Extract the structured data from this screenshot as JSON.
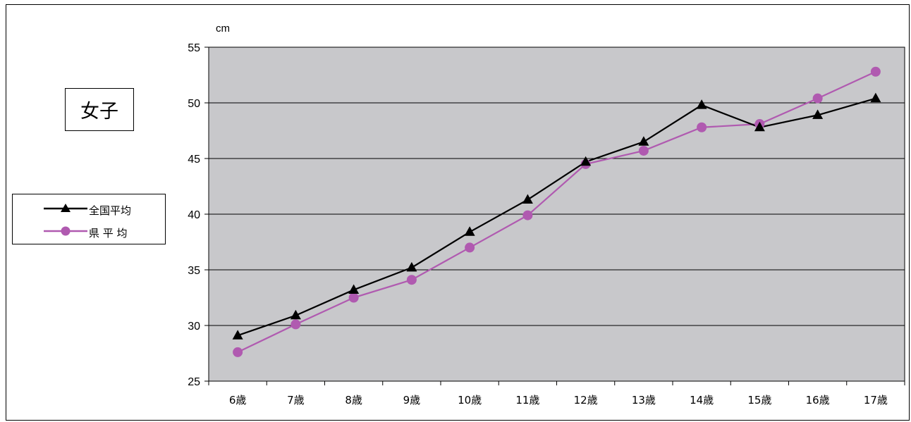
{
  "chart_data": {
    "type": "line",
    "title": "女子",
    "ylabel": "cm",
    "xlabel": "",
    "categories": [
      "6歳",
      "7歳",
      "8歳",
      "9歳",
      "10歳",
      "11歳",
      "12歳",
      "13歳",
      "14歳",
      "15歳",
      "16歳",
      "17歳"
    ],
    "ylim": [
      25,
      55
    ],
    "yticks": [
      25,
      30,
      35,
      40,
      45,
      50,
      55
    ],
    "grid": true,
    "legend_position": "left",
    "series": [
      {
        "name": "全国平均",
        "marker": "triangle",
        "color": "#000000",
        "values": [
          29.1,
          30.9,
          33.2,
          35.2,
          38.4,
          41.3,
          44.7,
          46.5,
          49.8,
          47.8,
          48.9,
          50.4
        ]
      },
      {
        "name": "県 平 均",
        "marker": "circle",
        "color": "#b05ab0",
        "values": [
          27.6,
          30.1,
          32.5,
          34.1,
          37.0,
          39.9,
          44.5,
          45.7,
          47.8,
          48.1,
          50.4,
          52.8
        ]
      }
    ],
    "plot_background": "#c8c8cb"
  }
}
